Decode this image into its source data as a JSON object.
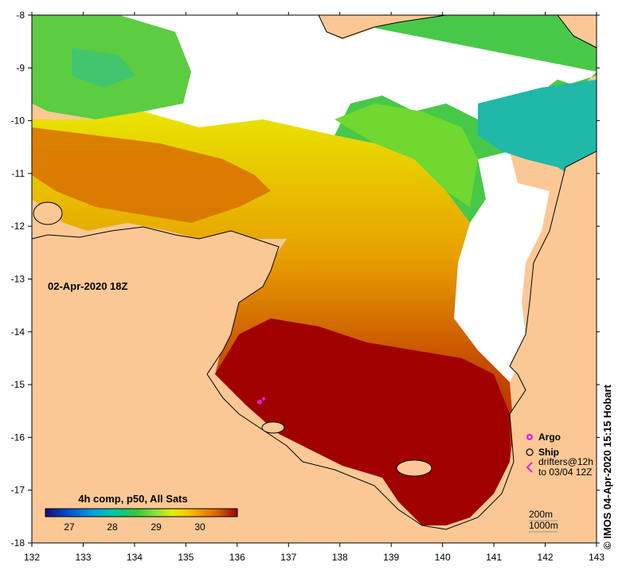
{
  "map": {
    "date_label": "02-Apr-2020 18Z",
    "colorbar": {
      "title": "4h comp, p50, All Sats",
      "ticks": [
        "27",
        "28",
        "29",
        "30"
      ],
      "colors": [
        "#1a0a78",
        "#0050d0",
        "#00a0e0",
        "#00c8a0",
        "#38c838",
        "#90e040",
        "#e0f000",
        "#f8c800",
        "#f09000",
        "#d86000",
        "#b83000",
        "#9c0000"
      ]
    },
    "x_ticks": [
      "132",
      "133",
      "134",
      "135",
      "136",
      "137",
      "138",
      "139",
      "140",
      "141",
      "142",
      "143"
    ],
    "y_ticks": [
      "-8",
      "-9",
      "-10",
      "-11",
      "-12",
      "-13",
      "-14",
      "-15",
      "-16",
      "-17",
      "-18"
    ],
    "legend": {
      "argo": "Argo",
      "ship": "Ship",
      "drifters_line1": "drifters@12h",
      "drifters_line2": "to 03/04 12Z"
    },
    "contours": {
      "c200": "200m",
      "c1000": "1000m"
    },
    "copyright": "© IMOS 04-Apr-2020 15:15 Hobart",
    "colors": {
      "land": "#fbc895",
      "nodata": "#ffffff",
      "sst_hot": "#a00000",
      "argo_marker": "#e020e0"
    }
  }
}
